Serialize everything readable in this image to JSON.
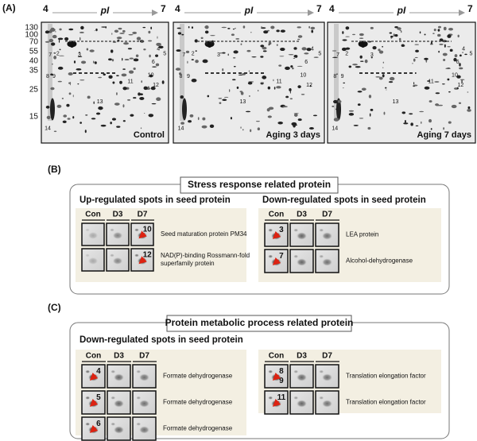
{
  "panel_a": {
    "label": "(A)",
    "axis_label": "pI",
    "axis_start": "4",
    "axis_end": "7",
    "mw_markers": [
      "130",
      "100",
      "70",
      "55",
      "40",
      "35",
      "25",
      "15"
    ],
    "gels": [
      {
        "caption": "Control",
        "spots": [
          "1",
          "2",
          "3",
          "4",
          "5",
          "6",
          "7",
          "8",
          "9",
          "10",
          "11",
          "12",
          "13",
          "14"
        ]
      },
      {
        "caption": "Aging 3 days",
        "spots": [
          "1",
          "2",
          "3",
          "4",
          "5",
          "6",
          "7",
          "8",
          "9",
          "10",
          "11",
          "12",
          "13",
          "14"
        ]
      },
      {
        "caption": "Aging 7 days",
        "spots": [
          "1",
          "2",
          "3",
          "4",
          "5",
          "6",
          "7",
          "8",
          "9",
          "10",
          "11",
          "12",
          "13",
          "14"
        ]
      }
    ]
  },
  "panel_b": {
    "label": "(B)",
    "title": "Stress response related protein",
    "groups": [
      {
        "heading": "Up-regulated spots in seed protein",
        "columns": [
          "Con",
          "D3",
          "D7"
        ],
        "rows": [
          {
            "spots": [
              "10"
            ],
            "protein": [
              "Seed maturation protein PM34"
            ]
          },
          {
            "spots": [
              "12"
            ],
            "protein": [
              "NAD(P)-binding Rossmann-fold",
              "superfamily protein"
            ]
          }
        ]
      },
      {
        "heading": "Down-regulated spots in seed protein",
        "columns": [
          "Con",
          "D3",
          "D7"
        ],
        "rows": [
          {
            "spots": [
              "3"
            ],
            "protein": [
              "LEA protein"
            ]
          },
          {
            "spots": [
              "7"
            ],
            "protein": [
              "Alcohol-dehydrogenase"
            ]
          }
        ]
      }
    ]
  },
  "panel_c": {
    "label": "(C)",
    "title": "Protein metabolic process related protein",
    "groups": [
      {
        "heading": "Down-regulated spots in seed protein",
        "columns": [
          "Con",
          "D3",
          "D7"
        ],
        "rows": [
          {
            "spots": [
              "4"
            ],
            "protein": [
              "Formate dehydrogenase"
            ]
          },
          {
            "spots": [
              "5"
            ],
            "protein": [
              "Formate dehydrogenase"
            ]
          },
          {
            "spots": [
              "6"
            ],
            "protein": [
              "Formate dehydrogenase"
            ]
          }
        ]
      },
      {
        "columns": [
          "Con",
          "D3",
          "D7"
        ],
        "rows": [
          {
            "spots": [
              "8",
              "9"
            ],
            "protein": [
              "Translation elongation factor"
            ]
          },
          {
            "spots": [
              "11"
            ],
            "protein": [
              "Translation elongation factor"
            ]
          }
        ]
      }
    ]
  }
}
